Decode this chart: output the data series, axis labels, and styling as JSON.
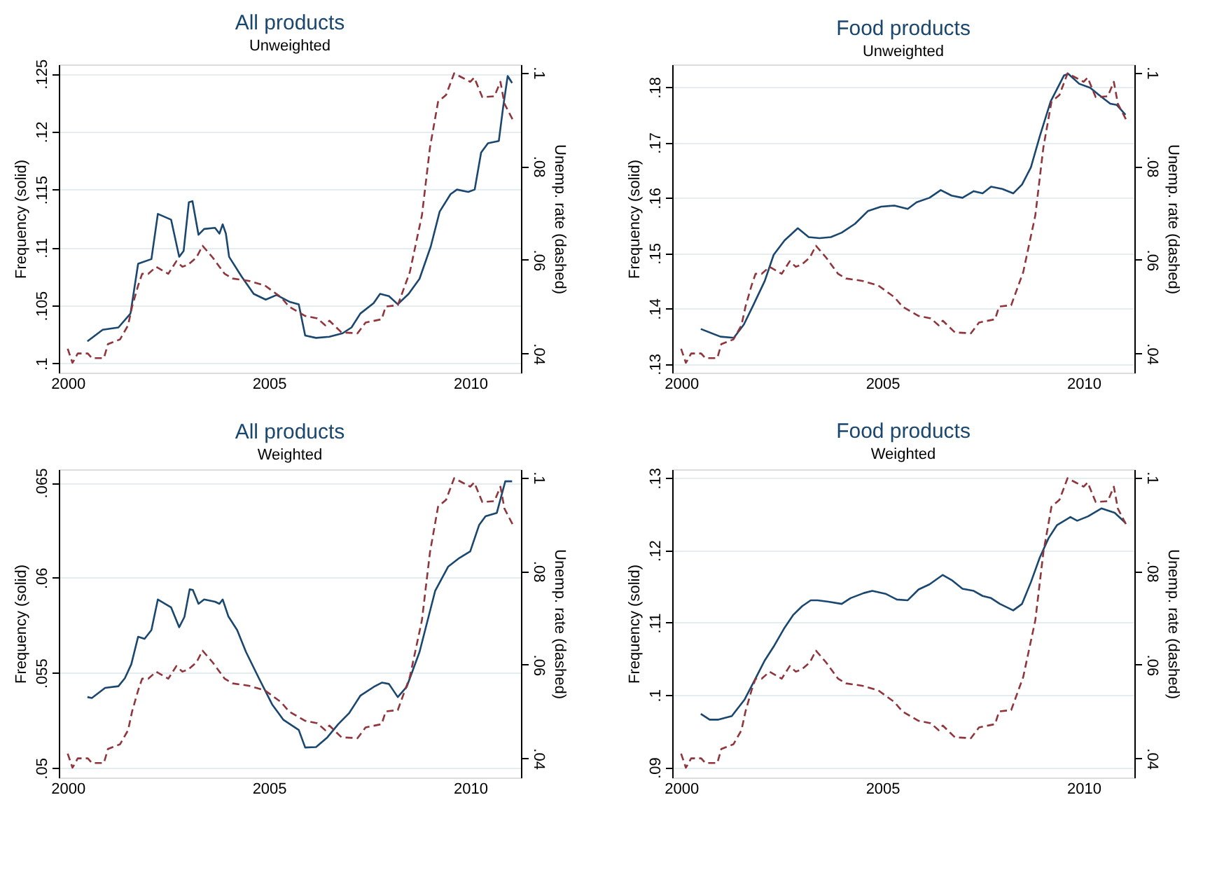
{
  "chart_data": [
    {
      "type": "line",
      "title": "All products",
      "subtitle": "Unweighted",
      "ylabel": "Frequency (solid)",
      "y2label": "Unemp. rate (dashed)",
      "xlim": [
        1999.78,
        2011.26
      ],
      "xticks": [
        2000,
        2005,
        2010
      ],
      "ylim": [
        0.0992,
        0.1258
      ],
      "yticks": [
        {
          "value": 0.1,
          "label": ".1"
        },
        {
          "value": 0.105,
          "label": ".105"
        },
        {
          "value": 0.11,
          "label": ".11"
        },
        {
          "value": 0.115,
          "label": ".115"
        },
        {
          "value": 0.12,
          "label": ".12"
        },
        {
          "value": 0.125,
          "label": ".125"
        }
      ],
      "y2lim": [
        0.0359,
        0.1017
      ],
      "y2ticks": [
        {
          "value": 0.04,
          "label": ".04"
        },
        {
          "value": 0.06,
          "label": ".06"
        },
        {
          "value": 0.08,
          "label": ".08"
        },
        {
          "value": 0.1,
          "label": ".1"
        }
      ],
      "grid": "y",
      "series": [
        {
          "color": "#1a476f",
          "line_style": "solid",
          "x": [
            2000.49,
            2000.87,
            2001.26,
            2001.56,
            2001.75,
            2002.08,
            2002.24,
            2002.57,
            2002.77,
            2002.88,
            2003.01,
            2003.1,
            2003.25,
            2003.39,
            2003.66,
            2003.77,
            2003.85,
            2003.93,
            2004.01,
            2004.32,
            2004.62,
            2004.92,
            2005.19,
            2005.52,
            2005.74,
            2005.9,
            2006.17,
            2006.5,
            2006.83,
            2007.05,
            2007.27,
            2007.6,
            2007.76,
            2007.98,
            2008.2,
            2008.47,
            2008.74,
            2009.02,
            2009.24,
            2009.51,
            2009.67,
            2009.95,
            2010.11,
            2010.27,
            2010.44,
            2010.71,
            2010.82,
            2010.93,
            2011.04
          ],
          "values": [
            0.1019,
            0.1029,
            0.1031,
            0.1043,
            0.1086,
            0.109,
            0.1129,
            0.1124,
            0.1092,
            0.1097,
            0.1139,
            0.114,
            0.1111,
            0.1116,
            0.1117,
            0.1112,
            0.112,
            0.1112,
            0.1092,
            0.1075,
            0.106,
            0.1055,
            0.1059,
            0.1053,
            0.1051,
            0.1024,
            0.1022,
            0.1023,
            0.1026,
            0.1031,
            0.1043,
            0.1052,
            0.106,
            0.1058,
            0.1051,
            0.106,
            0.1073,
            0.1101,
            0.1131,
            0.1146,
            0.115,
            0.1148,
            0.115,
            0.1182,
            0.119,
            0.1192,
            0.1222,
            0.1248,
            0.1242
          ]
        },
        {
          "axis": "y2",
          "color": "#90353b",
          "line_style": "dashed",
          "x": [
            2000.0,
            2000.12,
            2000.25,
            2000.5,
            2000.6,
            2000.9,
            2001.0,
            2001.3,
            2001.5,
            2001.6,
            2001.75,
            2001.85,
            2002.0,
            2002.2,
            2002.5,
            2002.7,
            2002.85,
            2003.0,
            2003.2,
            2003.35,
            2003.6,
            2003.9,
            2004.1,
            2004.5,
            2004.9,
            2005.3,
            2005.5,
            2005.9,
            2006.2,
            2006.4,
            2006.5,
            2006.8,
            2007.2,
            2007.4,
            2007.8,
            2007.9,
            2008.2,
            2008.5,
            2008.8,
            2009.0,
            2009.2,
            2009.4,
            2009.6,
            2009.8,
            2010.0,
            2010.1,
            2010.3,
            2010.6,
            2010.75,
            2010.85,
            2011.05
          ],
          "values": [
            0.041,
            0.038,
            0.04,
            0.04,
            0.039,
            0.039,
            0.042,
            0.043,
            0.046,
            0.05,
            0.0545,
            0.057,
            0.057,
            0.0585,
            0.057,
            0.0597,
            0.0585,
            0.059,
            0.0605,
            0.063,
            0.0605,
            0.057,
            0.056,
            0.0555,
            0.0545,
            0.052,
            0.05,
            0.048,
            0.0475,
            0.046,
            0.047,
            0.0445,
            0.0443,
            0.0466,
            0.0473,
            0.05,
            0.0503,
            0.0574,
            0.0695,
            0.084,
            0.0937,
            0.0952,
            0.0998,
            0.0989,
            0.098,
            0.0989,
            0.0947,
            0.0949,
            0.098,
            0.0933,
            0.09
          ]
        }
      ]
    },
    {
      "type": "line",
      "title": "Food products",
      "subtitle": "Unweighted",
      "ylabel": "Frequency (solid)",
      "y2label": "Unemp. rate (dashed)",
      "xlim": [
        1999.78,
        2011.26
      ],
      "xticks": [
        2000,
        2005,
        2010
      ],
      "ylim": [
        0.1284,
        0.1841
      ],
      "yticks": [
        {
          "value": 0.13,
          "label": ".13"
        },
        {
          "value": 0.14,
          "label": ".14"
        },
        {
          "value": 0.15,
          "label": ".15"
        },
        {
          "value": 0.16,
          "label": ".16"
        },
        {
          "value": 0.17,
          "label": ".17"
        },
        {
          "value": 0.18,
          "label": ".18"
        }
      ],
      "y2lim": [
        0.0359,
        0.1017
      ],
      "y2ticks": [
        {
          "value": 0.04,
          "label": ".04"
        },
        {
          "value": 0.06,
          "label": ".06"
        },
        {
          "value": 0.08,
          "label": ".08"
        },
        {
          "value": 0.1,
          "label": ".1"
        }
      ],
      "grid": "y",
      "series": [
        {
          "color": "#1a476f",
          "line_style": "solid",
          "x": [
            2000.49,
            2000.98,
            2001.31,
            2001.56,
            2001.8,
            2002.08,
            2002.3,
            2002.57,
            2002.9,
            2003.17,
            2003.44,
            2003.72,
            2003.99,
            2004.32,
            2004.64,
            2004.97,
            2005.3,
            2005.63,
            2005.85,
            2006.17,
            2006.45,
            2006.72,
            2006.99,
            2007.27,
            2007.49,
            2007.7,
            2007.98,
            2008.25,
            2008.47,
            2008.69,
            2008.91,
            2009.18,
            2009.51,
            2009.62,
            2009.89,
            2010.16,
            2010.38,
            2010.66,
            2010.82,
            2011.04
          ],
          "values": [
            0.1363,
            0.1349,
            0.1347,
            0.1371,
            0.1407,
            0.145,
            0.1497,
            0.1523,
            0.1545,
            0.1529,
            0.1527,
            0.1529,
            0.1537,
            0.1553,
            0.1576,
            0.1584,
            0.1586,
            0.158,
            0.1592,
            0.16,
            0.1614,
            0.1604,
            0.16,
            0.1612,
            0.1608,
            0.162,
            0.1616,
            0.1608,
            0.1624,
            0.1655,
            0.1711,
            0.1774,
            0.1821,
            0.1824,
            0.1806,
            0.1799,
            0.1786,
            0.177,
            0.1768,
            0.175
          ]
        },
        {
          "axis": "y2",
          "color": "#90353b",
          "line_style": "dashed",
          "x": [
            2000.0,
            2000.12,
            2000.25,
            2000.5,
            2000.6,
            2000.9,
            2001.0,
            2001.3,
            2001.5,
            2001.6,
            2001.75,
            2001.85,
            2002.0,
            2002.2,
            2002.5,
            2002.7,
            2002.85,
            2003.0,
            2003.2,
            2003.35,
            2003.6,
            2003.9,
            2004.1,
            2004.5,
            2004.9,
            2005.3,
            2005.5,
            2005.9,
            2006.2,
            2006.4,
            2006.5,
            2006.8,
            2007.2,
            2007.4,
            2007.8,
            2007.9,
            2008.2,
            2008.5,
            2008.8,
            2009.0,
            2009.2,
            2009.4,
            2009.6,
            2009.8,
            2010.0,
            2010.1,
            2010.3,
            2010.6,
            2010.75,
            2010.85,
            2011.05
          ],
          "values": [
            0.041,
            0.038,
            0.04,
            0.04,
            0.039,
            0.039,
            0.042,
            0.043,
            0.046,
            0.05,
            0.0545,
            0.057,
            0.057,
            0.0585,
            0.057,
            0.0597,
            0.0585,
            0.059,
            0.0605,
            0.063,
            0.0605,
            0.057,
            0.056,
            0.0555,
            0.0545,
            0.052,
            0.05,
            0.048,
            0.0475,
            0.046,
            0.047,
            0.0445,
            0.0443,
            0.0466,
            0.0473,
            0.05,
            0.0503,
            0.0574,
            0.0695,
            0.084,
            0.0937,
            0.0952,
            0.0998,
            0.0989,
            0.098,
            0.0989,
            0.0947,
            0.0949,
            0.098,
            0.0933,
            0.09
          ]
        }
      ]
    },
    {
      "type": "line",
      "title": "All products",
      "subtitle": "Weighted",
      "ylabel": "Frequency (solid)",
      "y2label": "Unemp. rate (dashed)",
      "xlim": [
        1999.78,
        2011.26
      ],
      "xticks": [
        2000,
        2005,
        2010
      ],
      "ylim": [
        0.0495,
        0.0657
      ],
      "yticks": [
        {
          "value": 0.05,
          "label": ".05"
        },
        {
          "value": 0.055,
          "label": ".055"
        },
        {
          "value": 0.06,
          "label": ".06"
        },
        {
          "value": 0.065,
          "label": ".065"
        }
      ],
      "y2lim": [
        0.0359,
        0.1017
      ],
      "y2ticks": [
        {
          "value": 0.04,
          "label": ".04"
        },
        {
          "value": 0.06,
          "label": ".06"
        },
        {
          "value": 0.08,
          "label": ".08"
        },
        {
          "value": 0.1,
          "label": ".1"
        }
      ],
      "grid": "y",
      "series": [
        {
          "color": "#1a476f",
          "line_style": "solid",
          "x": [
            2000.49,
            2000.6,
            2000.93,
            2001.26,
            2001.42,
            2001.58,
            2001.75,
            2001.91,
            2002.08,
            2002.24,
            2002.57,
            2002.77,
            2002.9,
            2003.03,
            2003.11,
            2003.25,
            2003.39,
            2003.66,
            2003.77,
            2003.85,
            2003.99,
            2004.21,
            2004.43,
            2004.75,
            2005.08,
            2005.36,
            2005.74,
            2005.9,
            2006.17,
            2006.45,
            2006.72,
            2006.99,
            2007.27,
            2007.6,
            2007.81,
            2007.98,
            2008.2,
            2008.42,
            2008.74,
            2009.13,
            2009.45,
            2009.73,
            2010.0,
            2010.22,
            2010.38,
            2010.66,
            2010.87,
            2011.04
          ],
          "values": [
            0.05373,
            0.05368,
            0.05421,
            0.0543,
            0.05472,
            0.05545,
            0.0569,
            0.05679,
            0.05725,
            0.05886,
            0.05844,
            0.0574,
            0.05794,
            0.05939,
            0.05936,
            0.05863,
            0.05886,
            0.05874,
            0.05863,
            0.05886,
            0.05798,
            0.05725,
            0.0561,
            0.05472,
            0.05334,
            0.05253,
            0.052,
            0.05108,
            0.0511,
            0.05161,
            0.0523,
            0.05288,
            0.0538,
            0.05426,
            0.05449,
            0.05442,
            0.05373,
            0.05426,
            0.0561,
            0.05932,
            0.06058,
            0.06104,
            0.06139,
            0.06277,
            0.06323,
            0.06341,
            0.06507,
            0.06507
          ]
        },
        {
          "axis": "y2",
          "color": "#90353b",
          "line_style": "dashed",
          "x": [
            2000.0,
            2000.12,
            2000.25,
            2000.5,
            2000.6,
            2000.9,
            2001.0,
            2001.3,
            2001.5,
            2001.6,
            2001.75,
            2001.85,
            2002.0,
            2002.2,
            2002.5,
            2002.7,
            2002.85,
            2003.0,
            2003.2,
            2003.35,
            2003.6,
            2003.9,
            2004.1,
            2004.5,
            2004.9,
            2005.3,
            2005.5,
            2005.9,
            2006.2,
            2006.4,
            2006.5,
            2006.8,
            2007.2,
            2007.4,
            2007.8,
            2007.9,
            2008.2,
            2008.5,
            2008.8,
            2009.0,
            2009.2,
            2009.4,
            2009.6,
            2009.8,
            2010.0,
            2010.1,
            2010.3,
            2010.6,
            2010.75,
            2010.85,
            2011.05
          ],
          "values": [
            0.041,
            0.038,
            0.04,
            0.04,
            0.039,
            0.039,
            0.042,
            0.043,
            0.046,
            0.05,
            0.0545,
            0.057,
            0.057,
            0.0585,
            0.057,
            0.0597,
            0.0585,
            0.059,
            0.0605,
            0.063,
            0.0605,
            0.057,
            0.056,
            0.0555,
            0.0545,
            0.052,
            0.05,
            0.048,
            0.0475,
            0.046,
            0.047,
            0.0445,
            0.0443,
            0.0466,
            0.0473,
            0.05,
            0.0503,
            0.0574,
            0.0695,
            0.084,
            0.0937,
            0.0952,
            0.0998,
            0.0989,
            0.098,
            0.0989,
            0.0947,
            0.0949,
            0.098,
            0.0933,
            0.09
          ]
        }
      ]
    },
    {
      "type": "line",
      "title": "Food products",
      "subtitle": "Weighted",
      "ylabel": "Frequency (solid)",
      "y2label": "Unemp. rate (dashed)",
      "xlim": [
        1999.78,
        2011.26
      ],
      "xticks": [
        2000,
        2005,
        2010
      ],
      "ylim": [
        0.0886,
        0.1312
      ],
      "yticks": [
        {
          "value": 0.09,
          "label": ".09"
        },
        {
          "value": 0.1,
          "label": ".1"
        },
        {
          "value": 0.11,
          "label": ".11"
        },
        {
          "value": 0.12,
          "label": ".12"
        },
        {
          "value": 0.13,
          "label": ".13"
        }
      ],
      "y2lim": [
        0.0359,
        0.1017
      ],
      "y2ticks": [
        {
          "value": 0.04,
          "label": ".04"
        },
        {
          "value": 0.06,
          "label": ".06"
        },
        {
          "value": 0.08,
          "label": ".08"
        },
        {
          "value": 0.1,
          "label": ".1"
        }
      ],
      "grid": "y",
      "series": [
        {
          "color": "#1a476f",
          "line_style": "solid",
          "x": [
            2000.49,
            2000.71,
            2000.93,
            2001.26,
            2001.58,
            2001.86,
            2002.08,
            2002.3,
            2002.57,
            2002.79,
            2003.01,
            2003.22,
            2003.39,
            2003.66,
            2003.99,
            2004.21,
            2004.54,
            2004.75,
            2005.08,
            2005.36,
            2005.63,
            2005.9,
            2006.17,
            2006.5,
            2006.72,
            2006.99,
            2007.27,
            2007.49,
            2007.7,
            2007.92,
            2008.25,
            2008.47,
            2008.69,
            2008.91,
            2009.13,
            2009.34,
            2009.67,
            2009.84,
            2010.11,
            2010.44,
            2010.77,
            2011.04
          ],
          "values": [
            0.0974,
            0.0966,
            0.0966,
            0.0971,
            0.0994,
            0.1024,
            0.1048,
            0.1067,
            0.1093,
            0.1111,
            0.1123,
            0.1131,
            0.1131,
            0.1129,
            0.1126,
            0.1134,
            0.1141,
            0.1144,
            0.114,
            0.1132,
            0.1131,
            0.1146,
            0.1153,
            0.1166,
            0.1159,
            0.1147,
            0.1144,
            0.1137,
            0.1134,
            0.1126,
            0.1117,
            0.1126,
            0.1156,
            0.119,
            0.1217,
            0.1235,
            0.1246,
            0.1241,
            0.1247,
            0.1258,
            0.1252,
            0.1238
          ]
        },
        {
          "axis": "y2",
          "color": "#90353b",
          "line_style": "dashed",
          "x": [
            2000.0,
            2000.12,
            2000.25,
            2000.5,
            2000.6,
            2000.9,
            2001.0,
            2001.3,
            2001.5,
            2001.6,
            2001.75,
            2001.85,
            2002.0,
            2002.2,
            2002.5,
            2002.7,
            2002.85,
            2003.0,
            2003.2,
            2003.35,
            2003.6,
            2003.9,
            2004.1,
            2004.5,
            2004.9,
            2005.3,
            2005.5,
            2005.9,
            2006.2,
            2006.4,
            2006.5,
            2006.8,
            2007.2,
            2007.4,
            2007.8,
            2007.9,
            2008.2,
            2008.5,
            2008.8,
            2009.0,
            2009.2,
            2009.4,
            2009.6,
            2009.8,
            2010.0,
            2010.1,
            2010.3,
            2010.6,
            2010.75,
            2010.85,
            2011.05
          ],
          "values": [
            0.041,
            0.038,
            0.04,
            0.04,
            0.039,
            0.039,
            0.042,
            0.043,
            0.046,
            0.05,
            0.0545,
            0.057,
            0.057,
            0.0585,
            0.057,
            0.0597,
            0.0585,
            0.059,
            0.0605,
            0.063,
            0.0605,
            0.057,
            0.056,
            0.0555,
            0.0545,
            0.052,
            0.05,
            0.048,
            0.0475,
            0.046,
            0.047,
            0.0445,
            0.0443,
            0.0466,
            0.0473,
            0.05,
            0.0503,
            0.0574,
            0.0695,
            0.084,
            0.0937,
            0.0952,
            0.0998,
            0.0989,
            0.098,
            0.0989,
            0.0947,
            0.0949,
            0.098,
            0.0933,
            0.09
          ]
        }
      ]
    }
  ]
}
